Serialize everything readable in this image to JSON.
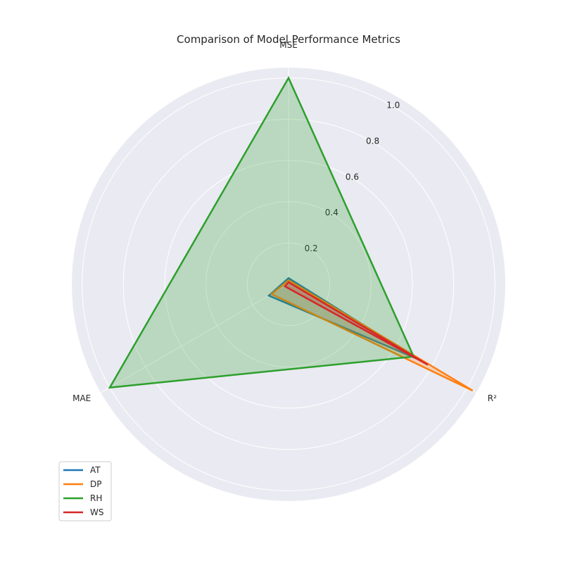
{
  "chart_data": {
    "type": "radar",
    "title": "Comparison of Model Performance Metrics",
    "axes": [
      "MSE",
      "R²",
      "MAE"
    ],
    "rlim": [
      0,
      1.05
    ],
    "rticks": [
      "0.2",
      "0.4",
      "0.6",
      "0.8",
      "1.0"
    ],
    "rtick_values": [
      0.2,
      0.4,
      0.6,
      0.8,
      1.0
    ],
    "grid": true,
    "legend_position": "lower-left",
    "series": [
      {
        "name": "AT",
        "color": "#1f77b4",
        "values": [
          0.03,
          0.73,
          0.11
        ]
      },
      {
        "name": "DP",
        "color": "#ff7f0e",
        "values": [
          0.02,
          1.03,
          0.095
        ]
      },
      {
        "name": "RH",
        "color": "#2ca02c",
        "values": [
          1.0,
          0.7,
          1.0
        ]
      },
      {
        "name": "WS",
        "color": "#d62728",
        "values": [
          0.01,
          0.78,
          0.02
        ]
      }
    ]
  },
  "colors": {
    "plot_background": "#eaeaf2",
    "grid": "#ffffff",
    "fill_series": "RH"
  }
}
